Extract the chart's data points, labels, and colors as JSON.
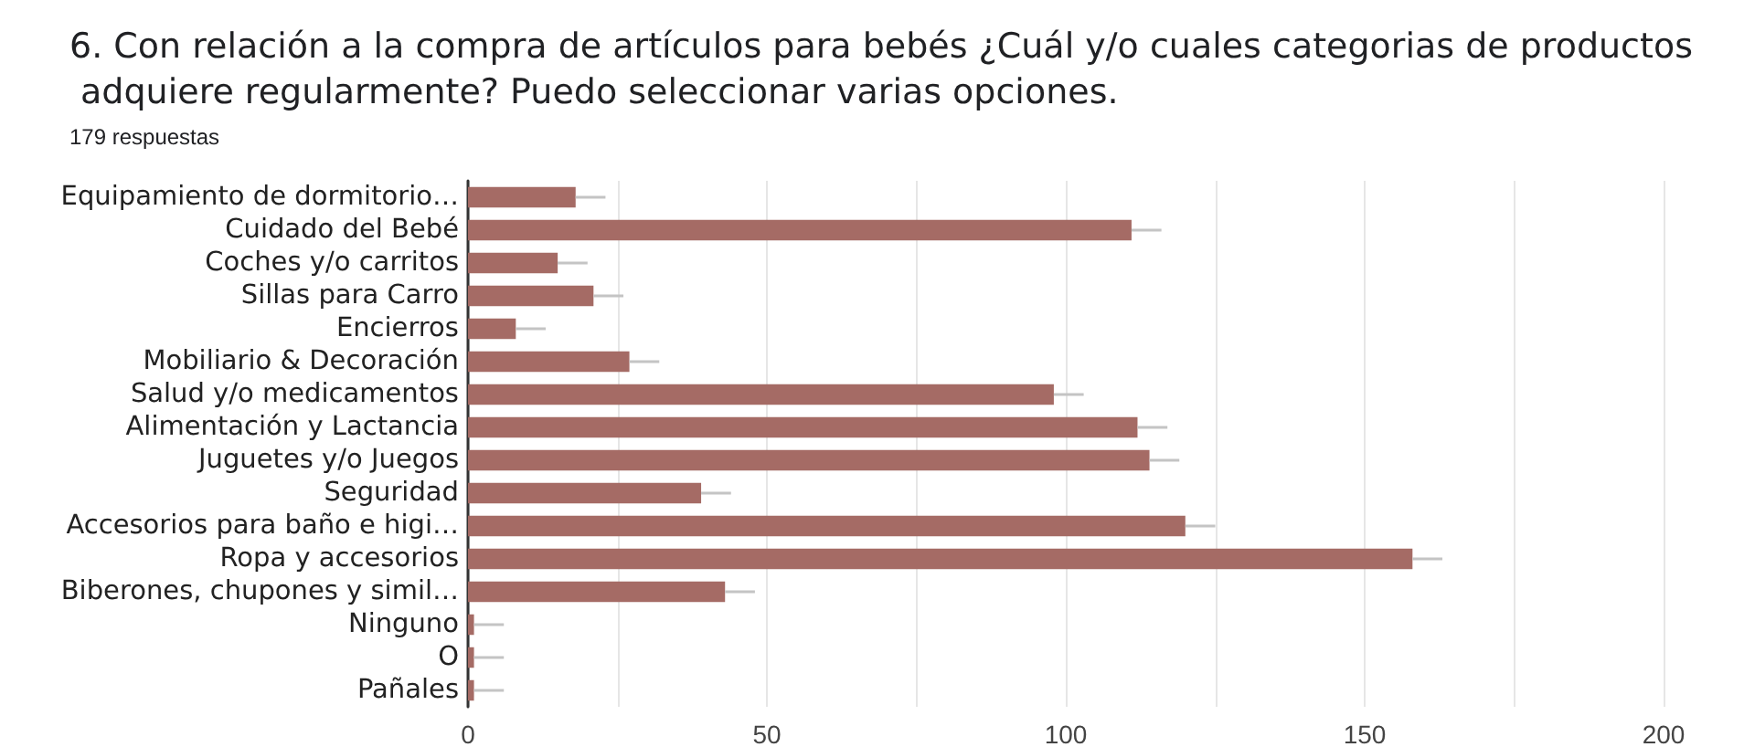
{
  "chart_data": {
    "type": "bar",
    "orientation": "horizontal",
    "title": "6. Con relación a la compra de artículos para bebés ¿Cuál y/o cuales categorias de productos adquiere regularmente? Puedo seleccionar varias opciones.",
    "subtitle": "179 respuestas",
    "categories": [
      "Equipamiento de dormitorio…",
      "Cuidado del Bebé",
      "Coches y/o carritos",
      "Sillas para Carro",
      "Encierros",
      "Mobiliario & Decoración",
      "Salud y/o medicamentos",
      "Alimentación y Lactancia",
      "Juguetes y/o Juegos",
      "Seguridad",
      "Accesorios para baño e higi…",
      "Ropa y accesorios",
      "Biberones, chupones y simil…",
      "Ninguno",
      "O",
      "Pañales"
    ],
    "values": [
      18,
      111,
      15,
      21,
      8,
      27,
      98,
      112,
      114,
      39,
      120,
      158,
      43,
      1,
      1,
      1
    ],
    "color": "#a56b65",
    "errors": [
      [
        18,
        23
      ],
      [
        111,
        116
      ],
      [
        15,
        20
      ],
      [
        21,
        26
      ],
      [
        8,
        13
      ],
      [
        27,
        32
      ],
      [
        98,
        103
      ],
      [
        112,
        117
      ],
      [
        114,
        119
      ],
      [
        39,
        44
      ],
      [
        120,
        125
      ],
      [
        158,
        163
      ],
      [
        43,
        48
      ],
      [
        1,
        6
      ],
      [
        1,
        6
      ],
      [
        1,
        6
      ]
    ],
    "xlim": [
      0,
      200
    ],
    "xticks": [
      0,
      {
        "value": 25,
        "label": null
      },
      50,
      {
        "value": 75,
        "label": null
      },
      100,
      {
        "value": 125,
        "label": null
      },
      150,
      {
        "value": 175,
        "label": null
      },
      200
    ],
    "grid": "x"
  }
}
